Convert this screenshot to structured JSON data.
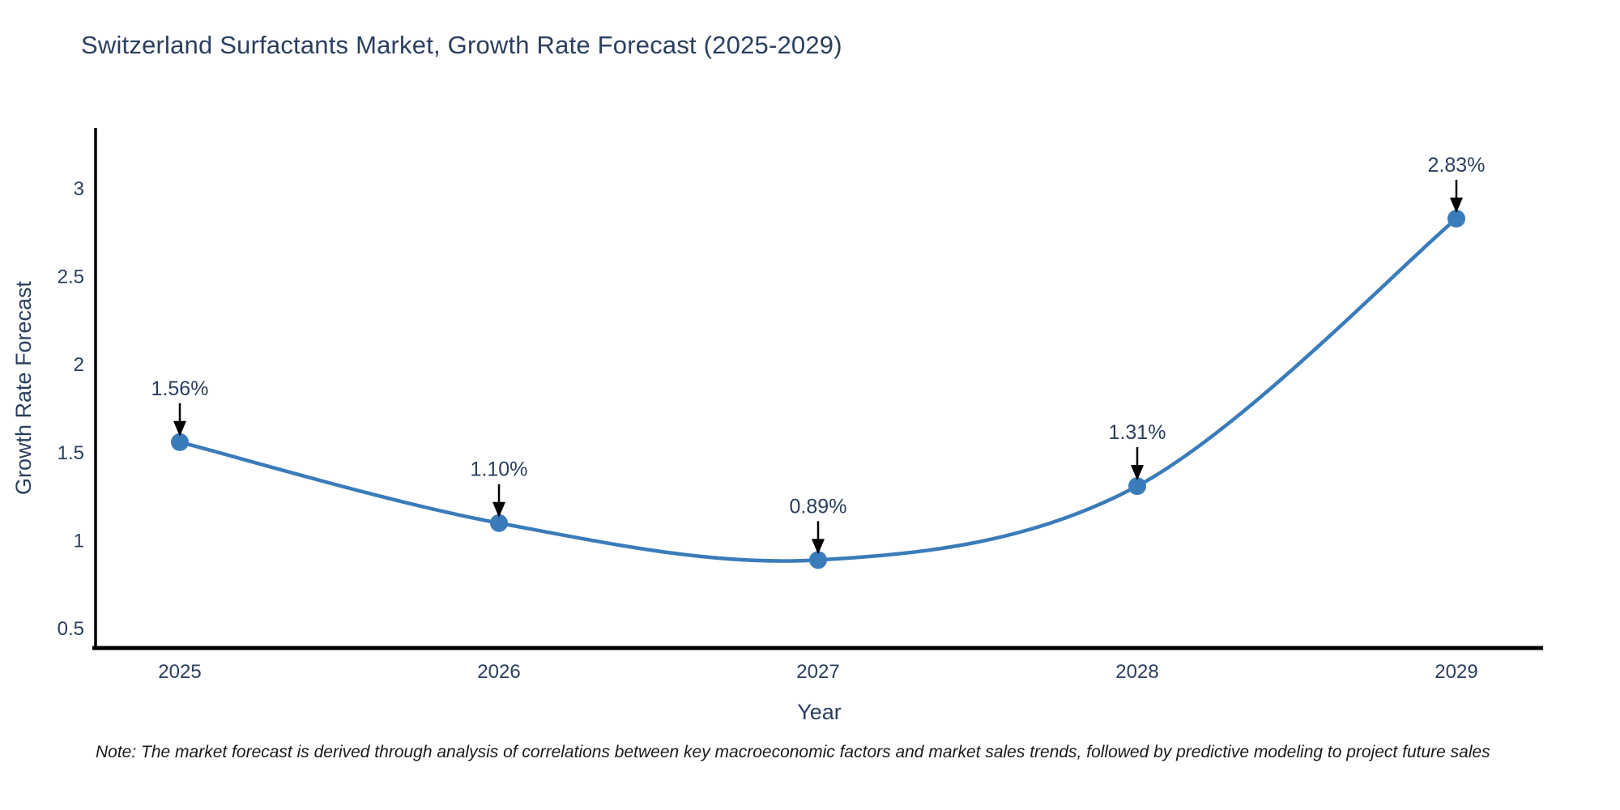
{
  "title": "Switzerland Surfactants Market, Growth Rate Forecast (2025-2029)",
  "note": "Note: The market forecast is derived through analysis of correlations between key macroeconomic factors and market sales trends, followed by predictive modeling to project future sales",
  "colors": {
    "line": "#3a7cba",
    "marker": "#3a7cba",
    "axis_line": "#000000",
    "tick_text": "#2a3f5f",
    "annotation_text": "#2a3f5f",
    "annotation_arrow": "#000000",
    "background": "#ffffff"
  },
  "chart_data": {
    "type": "line",
    "title": "Switzerland Surfactants Market, Growth Rate Forecast (2025-2029)",
    "categories": [
      "2025",
      "2026",
      "2027",
      "2028",
      "2029"
    ],
    "series": [
      {
        "name": "Growth Rate Forecast",
        "values": [
          1.56,
          1.1,
          0.89,
          1.31,
          2.83
        ]
      }
    ],
    "point_labels": [
      "1.56%",
      "1.10%",
      "0.89%",
      "1.31%",
      "2.83%"
    ],
    "xlabel": "Year",
    "ylabel": "Growth Rate Forecast",
    "ytick_values": [
      0.5,
      1,
      1.5,
      2,
      2.5,
      3
    ],
    "ytick_labels": [
      "0.5",
      "1",
      "1.5",
      "2",
      "2.5",
      "3"
    ],
    "ylim": [
      0.39,
      3.345
    ],
    "grid": false,
    "legend": "none",
    "line_shape": "spline",
    "markers": true
  }
}
